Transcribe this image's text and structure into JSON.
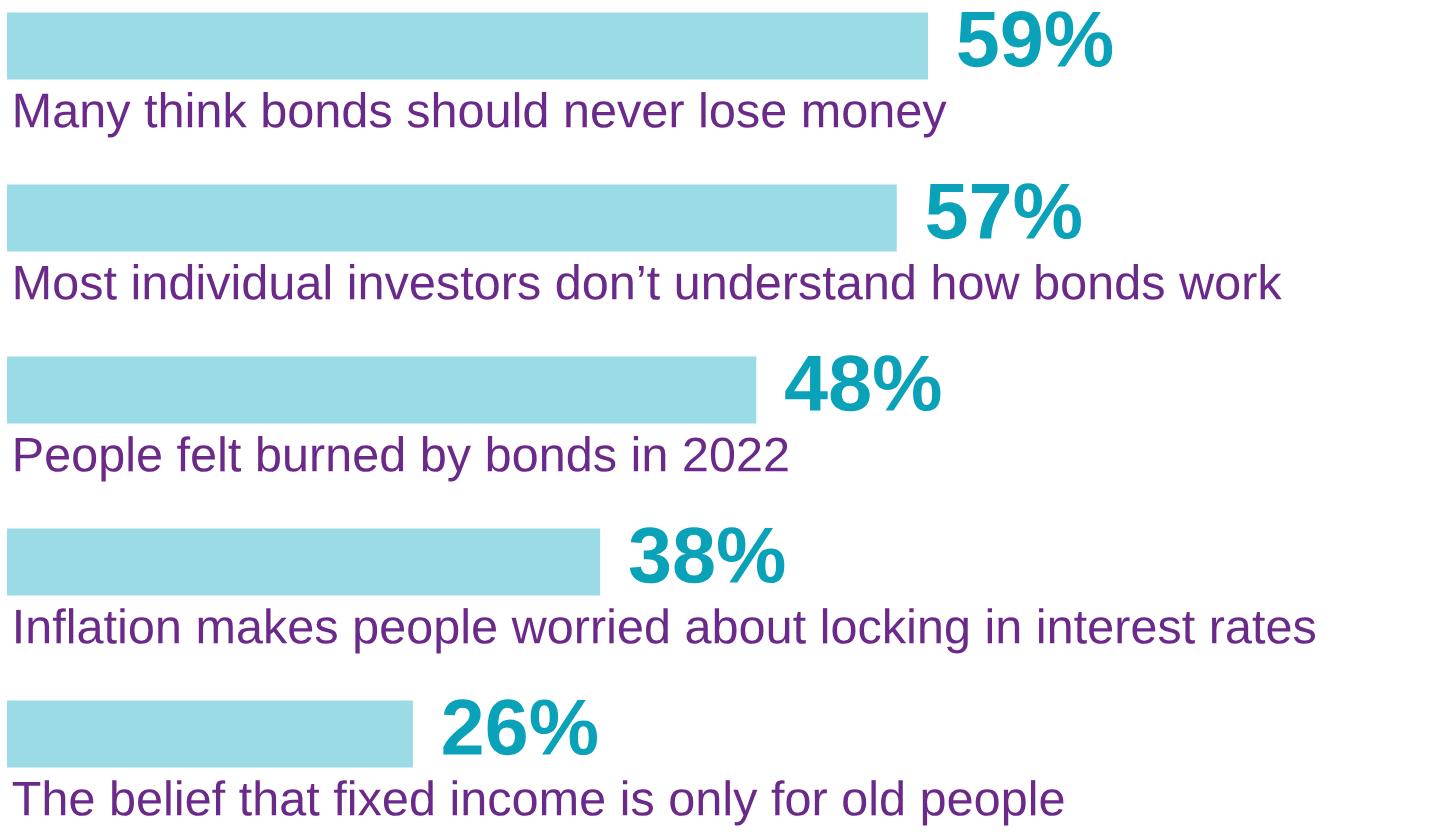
{
  "chart_data": {
    "type": "bar",
    "orientation": "horizontal",
    "categories": [
      "Many think bonds should never lose money",
      "Most individual investors don’t understand how bonds work",
      "People felt burned by bonds in 2022",
      "Inflation makes people worried about locking in interest rates",
      "The belief that fixed income is only for old people"
    ],
    "values": [
      59,
      57,
      48,
      38,
      26
    ],
    "value_labels": [
      "59%",
      "57%",
      "48%",
      "38%",
      "26%"
    ],
    "color": "#9bdbe5"
  }
}
